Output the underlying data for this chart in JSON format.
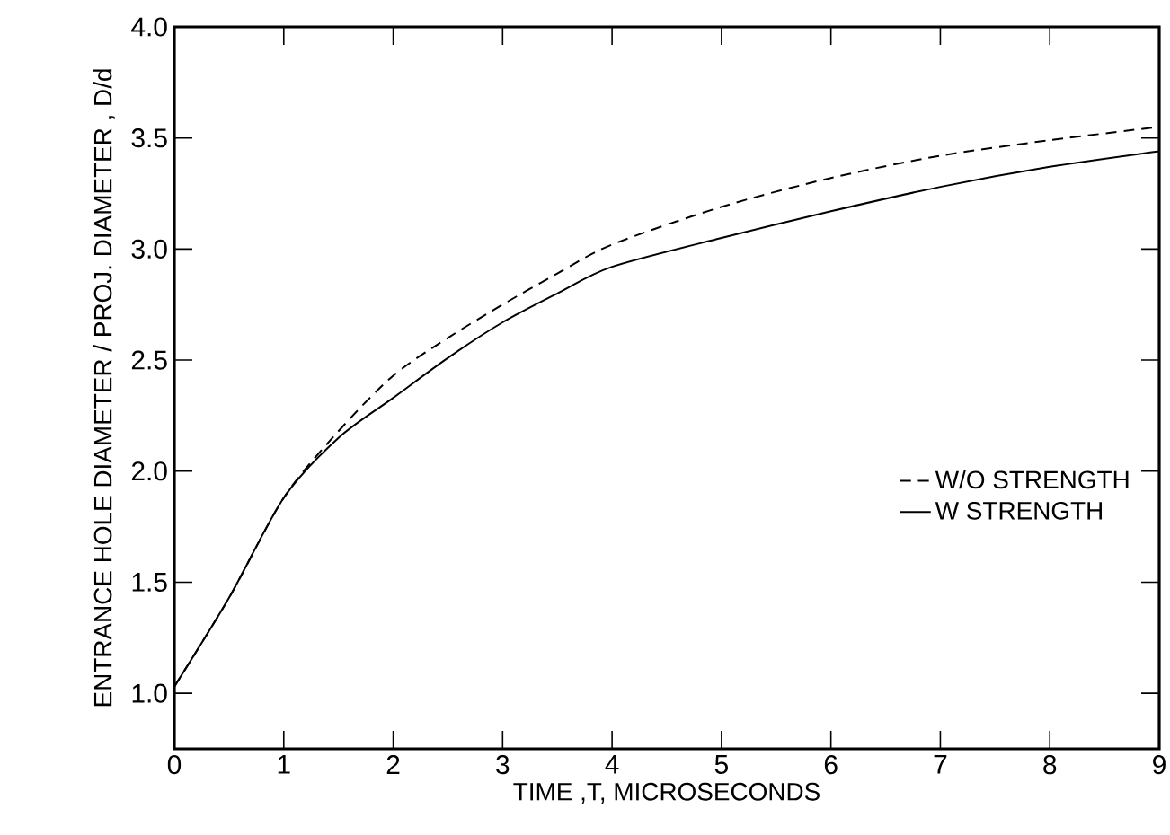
{
  "chart_data": {
    "type": "line",
    "xlabel": "TIME ,T, MICROSECONDS",
    "ylabel": "ENTRANCE HOLE DIAMETER / PROJ. DIAMETER , D/d",
    "xlim": [
      0,
      9
    ],
    "xticks": [
      0,
      1,
      2,
      3,
      4,
      5,
      6,
      7,
      8,
      9
    ],
    "ylim": [
      0.75,
      4.0
    ],
    "yticks": [
      {
        "value": 1,
        "label": "1.0"
      },
      1.5,
      {
        "value": 2,
        "label": "2.0"
      },
      2.5,
      {
        "value": 3,
        "label": "3.0"
      },
      3.5,
      {
        "value": 4,
        "label": "4.0"
      }
    ],
    "x": [
      0,
      0.5,
      1,
      1.5,
      2,
      2.5,
      3,
      3.5,
      4,
      5,
      6,
      7,
      8,
      9
    ],
    "legend": "right",
    "grid": false,
    "series": [
      {
        "name": "W/O STRENGTH",
        "color": "#000000",
        "line_style": "dashed",
        "values": [
          1.03,
          1.43,
          1.88,
          2.18,
          2.43,
          2.6,
          2.75,
          2.89,
          3.02,
          3.19,
          3.32,
          3.42,
          3.49,
          3.55
        ]
      },
      {
        "name": "W STRENGTH",
        "color": "#000000",
        "line_style": "solid",
        "values": [
          1.03,
          1.43,
          1.88,
          2.15,
          2.33,
          2.51,
          2.67,
          2.8,
          2.92,
          3.05,
          3.17,
          3.28,
          3.37,
          3.44
        ]
      }
    ]
  }
}
